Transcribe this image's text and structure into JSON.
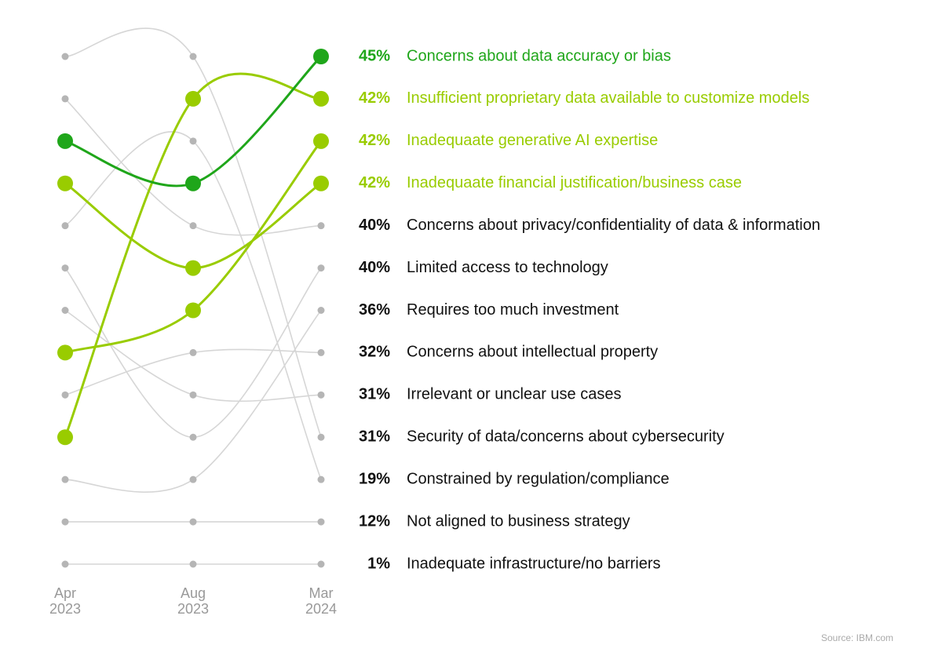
{
  "chart_data": {
    "type": "bump",
    "x": [
      "Apr 2023",
      "Aug 2023",
      "Mar 2024"
    ],
    "ylim": [
      1,
      13
    ],
    "categories": [
      "Concerns about data accuracy or bias",
      "Insufficient proprietary data available to customize models",
      "Inadequaate generative AI expertise",
      "Inadequaate financial justification/business case",
      "Concerns about privacy/confidentiality of data & information",
      "Limited access to technology",
      "Requires too much investment",
      "Concerns about intellectual property",
      "Irrelevant or unclear use cases",
      "Security of data/concerns about cybersecurity",
      "Constrained by regulation/compliance",
      "Not aligned to business strategy",
      "Inadequate infrastructure/no barriers"
    ],
    "values": [
      45,
      42,
      42,
      42,
      40,
      40,
      36,
      32,
      31,
      31,
      19,
      12,
      1
    ],
    "value_labels": [
      "45%",
      "42%",
      "42%",
      "42%",
      "40%",
      "40%",
      "36%",
      "32%",
      "31%",
      "31%",
      "19%",
      "12%",
      "1%"
    ],
    "ranks": [
      [
        3,
        4,
        1
      ],
      [
        10,
        2,
        2
      ],
      [
        8,
        7,
        3
      ],
      [
        4,
        6,
        4
      ],
      [
        2,
        5,
        5
      ],
      [
        6,
        10,
        6
      ],
      [
        11,
        11,
        7
      ],
      [
        9,
        8,
        8
      ],
      [
        7,
        9,
        9
      ],
      [
        1,
        1,
        10
      ],
      [
        5,
        3,
        11
      ],
      [
        12,
        12,
        12
      ],
      [
        13,
        13,
        13
      ]
    ],
    "highlight": [
      true,
      true,
      true,
      true,
      false,
      false,
      false,
      false,
      false,
      false,
      false,
      false,
      false
    ],
    "colors": [
      "#1fa61a",
      "#99cc00",
      "#99cc00",
      "#99cc00",
      "#d6d6d6",
      "#d6d6d6",
      "#d6d6d6",
      "#d6d6d6",
      "#d6d6d6",
      "#d6d6d6",
      "#d6d6d6",
      "#d6d6d6",
      "#d6d6d6"
    ],
    "source": "Source: IBM.com"
  }
}
